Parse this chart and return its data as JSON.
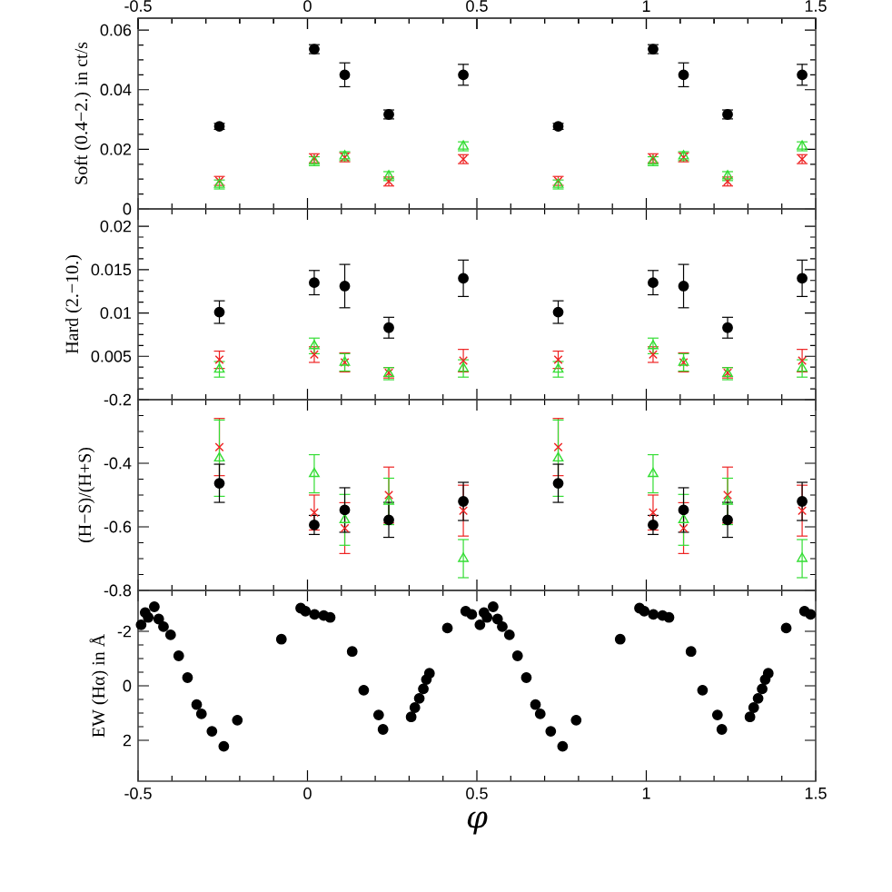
{
  "chart_data": [
    {
      "type": "scatter",
      "ylabel": "Soft (0.4−2.) in ct/s",
      "xlim": [
        -0.5,
        1.5
      ],
      "xticks": [
        -0.5,
        0,
        0.5,
        1,
        1.5
      ],
      "x2lim": [
        -0.5,
        1.5
      ],
      "x2ticks": [
        -0.5,
        0,
        0.5,
        1,
        1.5
      ],
      "ylim": [
        0,
        0.064
      ],
      "yticks": [
        0,
        0.02,
        0.04,
        0.06
      ],
      "tick_labels": "y",
      "x": [
        -0.26,
        0.02,
        0.11,
        0.24,
        0.46,
        0.74,
        1.02,
        1.11,
        1.24,
        1.46
      ],
      "series": [
        {
          "color": "#000000",
          "marker": "circle",
          "values": [
            0.0277,
            0.0536,
            0.045,
            0.0317,
            0.045,
            0.0277,
            0.0536,
            0.045,
            0.0317,
            0.045
          ],
          "errors": [
            0.001,
            0.0015,
            0.004,
            0.0015,
            0.0035,
            0.001,
            0.0015,
            0.004,
            0.0015,
            0.0035
          ]
        },
        {
          "color": "#33dd33",
          "marker": "triangle",
          "values": [
            0.0082,
            0.016,
            0.0177,
            0.011,
            0.021,
            0.0082,
            0.016,
            0.0177,
            0.011,
            0.021
          ],
          "errors": [
            0.0015,
            0.0015,
            0.0015,
            0.0015,
            0.0015,
            0.0015,
            0.0015,
            0.0015,
            0.0015,
            0.0015
          ]
        },
        {
          "color": "#ee2222",
          "marker": "cross",
          "values": [
            0.0094,
            0.017,
            0.0173,
            0.0092,
            0.0167,
            0.0094,
            0.017,
            0.0173,
            0.0092,
            0.0167
          ],
          "errors": [
            0.0015,
            0.0015,
            0.0015,
            0.0015,
            0.0015,
            0.0015,
            0.0015,
            0.0015,
            0.0015,
            0.0015
          ]
        }
      ]
    },
    {
      "type": "scatter",
      "ylabel": "Hard (2.−10.)",
      "xlim": [
        -0.5,
        1.5
      ],
      "xticks": [
        -0.5,
        0,
        0.5,
        1,
        1.5
      ],
      "ylim": [
        0,
        0.022
      ],
      "yticks": [
        {
          "value": 0,
          "label": null
        },
        0.005,
        0.01,
        0.015,
        0.02
      ],
      "tick_labels": "y",
      "x": [
        -0.26,
        0.02,
        0.11,
        0.24,
        0.46,
        0.74,
        1.02,
        1.11,
        1.24,
        1.46
      ],
      "series": [
        {
          "color": "#000000",
          "marker": "circle",
          "values": [
            0.0101,
            0.0135,
            0.0131,
            0.0083,
            0.014,
            0.0101,
            0.0135,
            0.0131,
            0.0083,
            0.014
          ],
          "errors": [
            0.0013,
            0.0014,
            0.0025,
            0.0012,
            0.0021,
            0.0013,
            0.0014,
            0.0025,
            0.0012,
            0.0021
          ]
        },
        {
          "color": "#33dd33",
          "marker": "triangle",
          "values": [
            0.0035,
            0.0062,
            0.0043,
            0.003,
            0.0036,
            0.0035,
            0.0062,
            0.0043,
            0.003,
            0.0036
          ],
          "errors": [
            0.0009,
            0.0009,
            0.001,
            0.0007,
            0.001,
            0.0009,
            0.0009,
            0.001,
            0.0007,
            0.001
          ]
        },
        {
          "color": "#ee2222",
          "marker": "cross",
          "values": [
            0.0046,
            0.0052,
            0.0043,
            0.0031,
            0.0045,
            0.0046,
            0.0052,
            0.0043,
            0.0031,
            0.0045
          ],
          "errors": [
            0.001,
            0.0009,
            0.0011,
            0.0006,
            0.0013,
            0.001,
            0.0009,
            0.0011,
            0.0006,
            0.0013
          ]
        }
      ]
    },
    {
      "type": "scatter",
      "ylabel": "(H−S)/(H+S)",
      "xlim": [
        -0.5,
        1.5
      ],
      "xticks": [
        -0.5,
        0,
        0.5,
        1,
        1.5
      ],
      "ylim": [
        -0.8,
        -0.2
      ],
      "yticks": [
        -0.8,
        -0.6,
        -0.4,
        -0.2
      ],
      "tick_labels": "y",
      "x": [
        -0.26,
        0.02,
        0.11,
        0.24,
        0.46,
        0.74,
        1.02,
        1.11,
        1.24,
        1.46
      ],
      "series": [
        {
          "color": "#000000",
          "marker": "circle",
          "values": [
            -0.463,
            -0.594,
            -0.547,
            -0.578,
            -0.52,
            -0.463,
            -0.594,
            -0.547,
            -0.578,
            -0.52
          ],
          "errors": [
            0.06,
            0.03,
            0.07,
            0.055,
            0.06,
            0.06,
            0.03,
            0.07,
            0.055,
            0.06
          ]
        },
        {
          "color": "#33dd33",
          "marker": "triangle",
          "values": [
            -0.384,
            -0.433,
            -0.578,
            -0.52,
            -0.7,
            -0.384,
            -0.433,
            -0.578,
            -0.52,
            -0.7
          ],
          "errors": [
            0.12,
            0.06,
            0.08,
            0.073,
            0.06,
            0.12,
            0.06,
            0.08,
            0.073,
            0.06
          ]
        },
        {
          "color": "#ee2222",
          "marker": "cross",
          "values": [
            -0.349,
            -0.555,
            -0.604,
            -0.5,
            -0.549,
            -0.349,
            -0.555,
            -0.604,
            -0.5,
            -0.549
          ],
          "errors": [
            0.09,
            0.055,
            0.08,
            0.088,
            0.08,
            0.09,
            0.055,
            0.08,
            0.088,
            0.08
          ]
        }
      ]
    },
    {
      "type": "scatter",
      "ylabel": "EW (Hα) in Å",
      "xlabel": "φ",
      "xlim": [
        -0.5,
        1.5
      ],
      "xticks": [
        -0.5,
        0,
        0.5,
        1,
        1.5
      ],
      "ylim": [
        3.5,
        -3.5
      ],
      "yticks": [
        2,
        0,
        -2
      ],
      "x": [
        -0.491,
        -0.479,
        -0.47,
        -0.452,
        -0.439,
        -0.425,
        -0.404,
        -0.38,
        -0.354,
        -0.327,
        -0.313,
        -0.282,
        -0.247,
        -0.207,
        -0.077,
        -0.02,
        -0.006,
        0.021,
        0.048,
        0.067,
        0.132,
        0.166,
        0.21,
        0.223,
        0.306,
        0.317,
        0.33,
        0.342,
        0.351,
        0.36,
        0.413,
        0.467,
        0.485,
        0.509,
        0.521,
        0.53,
        0.548,
        0.561,
        0.575,
        0.596,
        0.62,
        0.646,
        0.673,
        0.687,
        0.718,
        0.753,
        0.793,
        0.923,
        0.98,
        0.994,
        1.021,
        1.048,
        1.067,
        1.132,
        1.166,
        1.21,
        1.223,
        1.306,
        1.317,
        1.33,
        1.342,
        1.351,
        1.36,
        1.413,
        1.467,
        1.485
      ],
      "series": [
        {
          "color": "#000000",
          "marker": "circle",
          "values": [
            -2.24,
            -2.69,
            -2.51,
            -2.9,
            -2.45,
            -2.17,
            -1.87,
            -1.1,
            -0.3,
            0.69,
            1.03,
            1.67,
            2.22,
            1.26,
            -1.71,
            -2.85,
            -2.74,
            -2.62,
            -2.58,
            -2.51,
            -1.26,
            0.16,
            1.07,
            1.6,
            1.14,
            0.8,
            0.46,
            0.11,
            -0.23,
            -0.46,
            -2.12,
            -2.74,
            -2.62,
            -2.24,
            -2.69,
            -2.51,
            -2.9,
            -2.45,
            -2.17,
            -1.87,
            -1.1,
            -0.3,
            0.69,
            1.03,
            1.67,
            2.22,
            1.26,
            -1.71,
            -2.85,
            -2.74,
            -2.62,
            -2.58,
            -2.51,
            -1.26,
            0.16,
            1.07,
            1.6,
            1.14,
            0.8,
            0.46,
            0.11,
            -0.23,
            -0.46,
            -2.12,
            -2.74,
            -2.62
          ]
        }
      ]
    }
  ]
}
